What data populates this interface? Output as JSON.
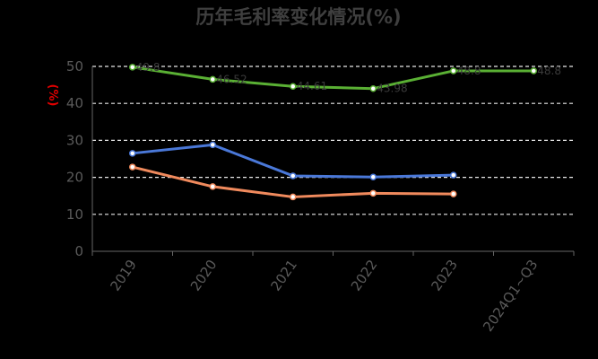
{
  "chart_data": {
    "type": "line",
    "title": "历年毛利率变化情况(%)",
    "ylabel": "(%)",
    "xlabel": "",
    "categories": [
      "2019",
      "2020",
      "2021",
      "2022",
      "2023",
      "2024Q1~Q3"
    ],
    "yticks": [
      "0",
      "10",
      "20",
      "30",
      "40",
      "50"
    ],
    "ylim": [
      0,
      50
    ],
    "grid": true,
    "series": [
      {
        "color": "#5ab034",
        "values": [
          49.8,
          46.5,
          44.6,
          44.0,
          48.8,
          48.8
        ],
        "labels": [
          "49.8",
          "46.52",
          "44.61",
          "43.98",
          "48.8",
          "48.8"
        ]
      },
      {
        "color": "#4a78d8",
        "values": [
          26.5,
          28.8,
          20.4,
          20.1,
          20.6,
          null
        ]
      },
      {
        "color": "#f08a5d",
        "values": [
          22.8,
          17.5,
          14.7,
          15.7,
          15.5,
          null
        ]
      }
    ]
  }
}
